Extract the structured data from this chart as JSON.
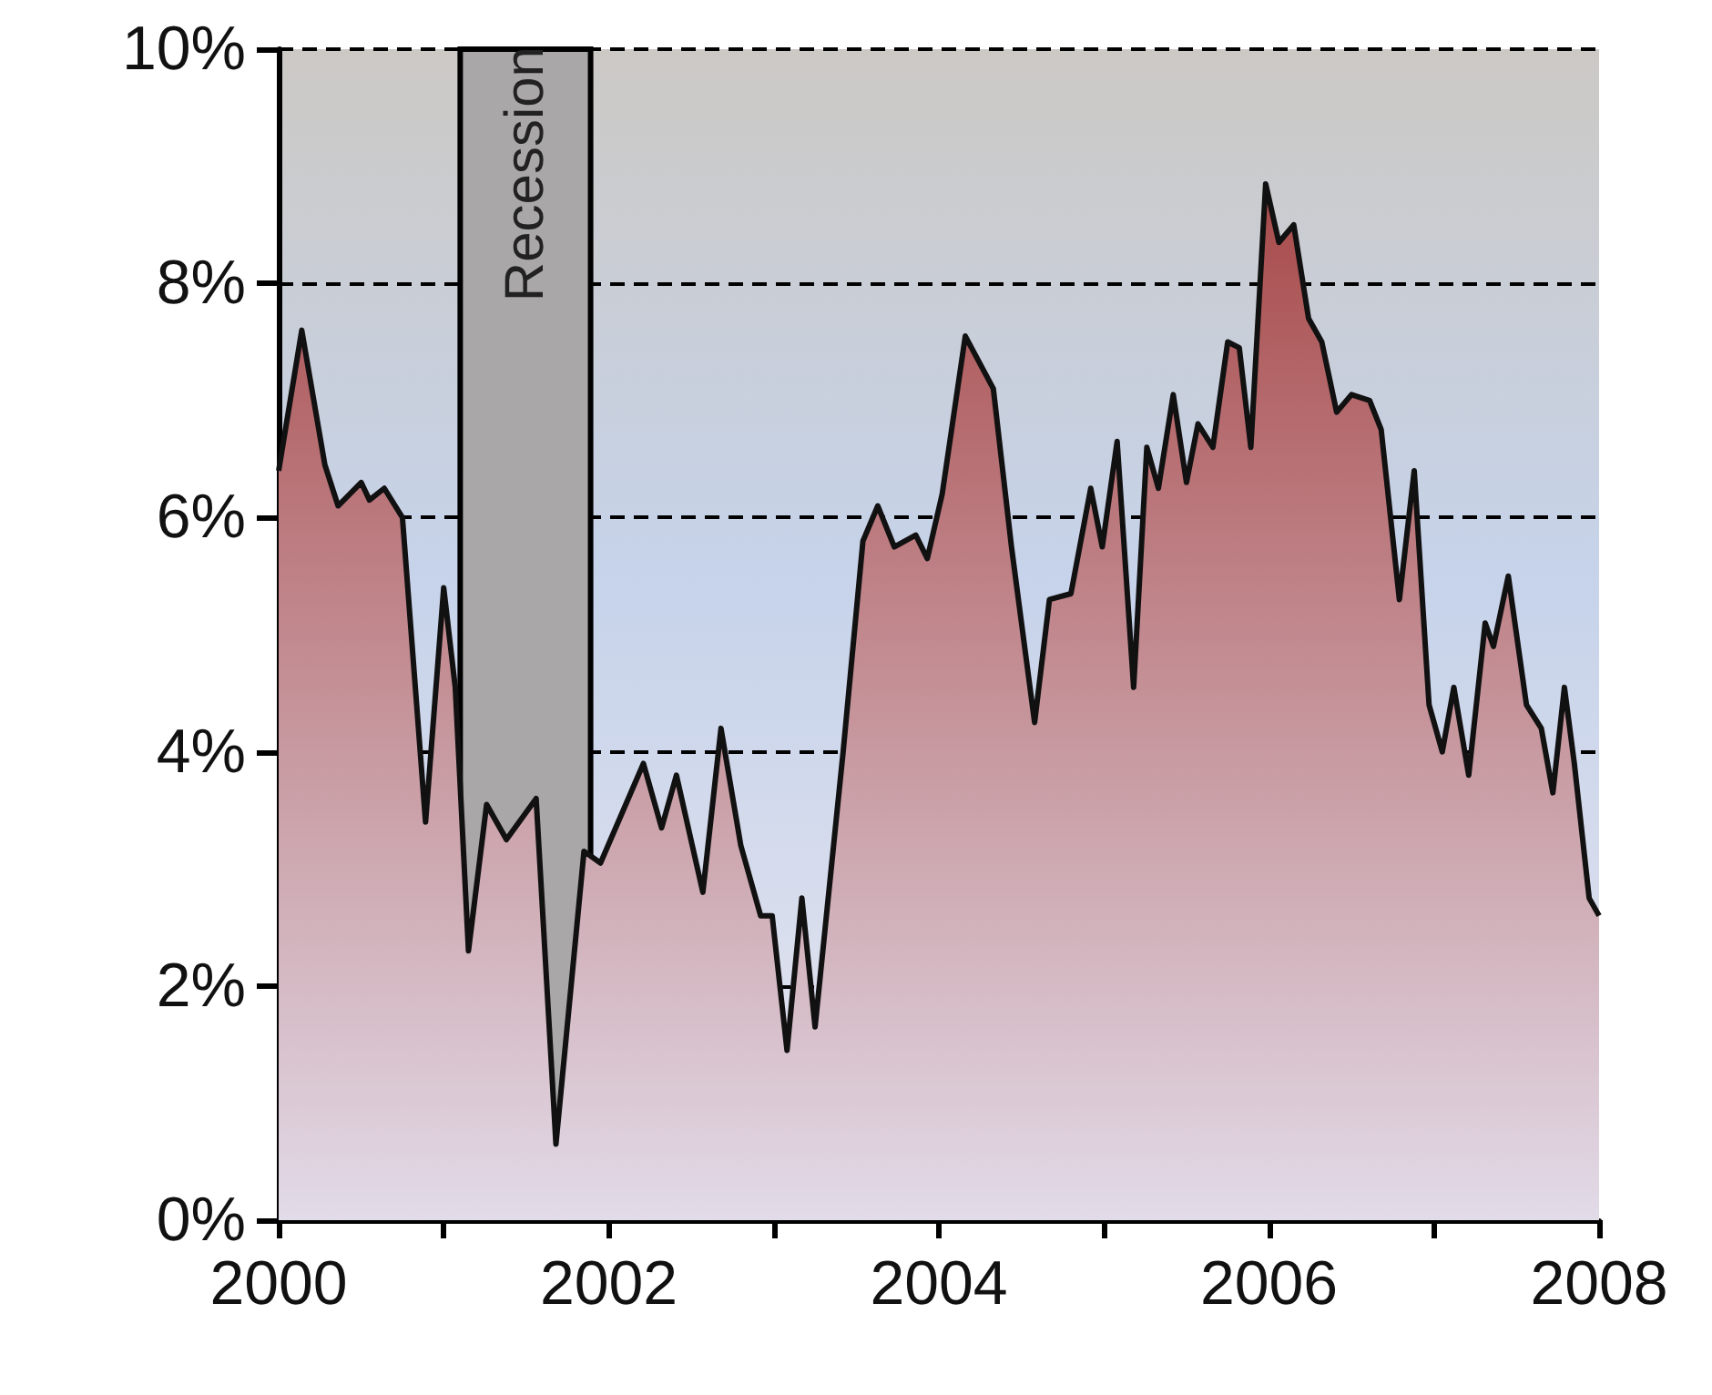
{
  "chart_data": {
    "type": "area",
    "x": [
      2000.0,
      2000.14,
      2000.28,
      2000.36,
      2000.5,
      2000.55,
      2000.64,
      2000.75,
      2000.89,
      2001.0,
      2001.07,
      2001.15,
      2001.26,
      2001.38,
      2001.56,
      2001.68,
      2001.85,
      2001.95,
      2002.21,
      2002.32,
      2002.41,
      2002.57,
      2002.68,
      2002.8,
      2002.92,
      2002.99,
      2003.08,
      2003.17,
      2003.25,
      2003.42,
      2003.54,
      2003.63,
      2003.73,
      2003.86,
      2003.93,
      2004.02,
      2004.16,
      2004.33,
      2004.44,
      2004.58,
      2004.67,
      2004.8,
      2004.92,
      2004.99,
      2005.08,
      2005.18,
      2005.26,
      2005.33,
      2005.42,
      2005.5,
      2005.57,
      2005.66,
      2005.75,
      2005.82,
      2005.89,
      2005.98,
      2006.06,
      2006.15,
      2006.24,
      2006.32,
      2006.41,
      2006.5,
      2006.61,
      2006.68,
      2006.79,
      2006.88,
      2006.97,
      2007.05,
      2007.12,
      2007.21,
      2007.31,
      2007.36,
      2007.45,
      2007.56,
      2007.65,
      2007.72,
      2007.79,
      2007.85,
      2007.94,
      2008.0
    ],
    "series": [
      {
        "color": "#a84a4a",
        "values": [
          6.4,
          7.6,
          6.45,
          6.1,
          6.3,
          6.15,
          6.25,
          6.0,
          3.4,
          5.4,
          4.55,
          2.3,
          3.55,
          3.25,
          3.6,
          0.65,
          3.15,
          3.05,
          3.9,
          3.35,
          3.8,
          2.8,
          4.2,
          3.2,
          2.6,
          2.6,
          1.45,
          2.75,
          1.65,
          4.0,
          5.8,
          6.1,
          5.75,
          5.85,
          5.65,
          6.2,
          7.55,
          7.1,
          5.75,
          4.25,
          5.3,
          5.35,
          6.25,
          5.75,
          6.65,
          4.55,
          6.6,
          6.25,
          7.05,
          6.3,
          6.8,
          6.6,
          7.5,
          7.45,
          6.6,
          8.85,
          8.35,
          8.5,
          7.7,
          7.5,
          6.9,
          7.05,
          7.0,
          6.75,
          5.3,
          6.4,
          4.4,
          4.0,
          4.55,
          3.8,
          5.1,
          4.9,
          5.5,
          4.4,
          4.2,
          3.65,
          4.55,
          3.9,
          2.75,
          2.6
        ]
      }
    ],
    "xlim": [
      2000,
      2008
    ],
    "xticks": [
      2000,
      {
        "value": 2001,
        "label": null
      },
      2002,
      {
        "value": 2003,
        "label": null
      },
      2004,
      {
        "value": 2005,
        "label": null
      },
      2006,
      {
        "value": 2007,
        "label": null
      },
      2008
    ],
    "ylim": [
      0,
      10
    ],
    "yticks": [
      {
        "value": 0,
        "label": "0%"
      },
      {
        "value": 2,
        "label": "2%"
      },
      {
        "value": 4,
        "label": "4%"
      },
      {
        "value": 6,
        "label": "6%"
      },
      {
        "value": 8,
        "label": "8%"
      },
      {
        "value": 10,
        "label": "10%"
      }
    ],
    "bands": [
      {
        "axis": "x",
        "from": 2001.1,
        "to": 2001.89,
        "label": "Recession",
        "color": "#a9a7a7"
      }
    ],
    "grid": "y",
    "marker": "none",
    "line_style": "solid"
  }
}
